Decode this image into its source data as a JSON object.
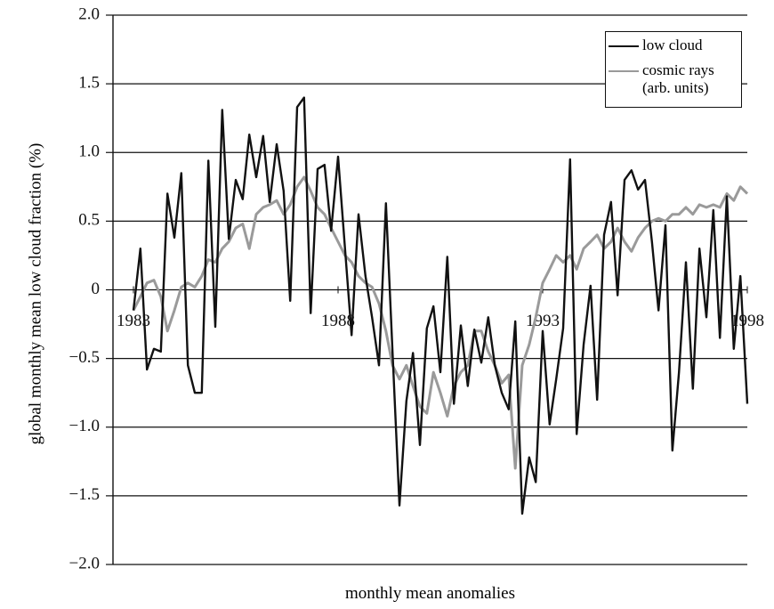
{
  "chart_data": {
    "type": "line",
    "x_label": "monthly mean anomalies",
    "y_label": "global monthly mean low cloud fraction (%)",
    "x": [
      1983,
      1983.17,
      1983.33,
      1983.5,
      1983.67,
      1983.83,
      1984,
      1984.17,
      1984.33,
      1984.5,
      1984.67,
      1984.83,
      1985,
      1985.17,
      1985.33,
      1985.5,
      1985.67,
      1985.83,
      1986,
      1986.17,
      1986.33,
      1986.5,
      1986.67,
      1986.83,
      1987,
      1987.17,
      1987.33,
      1987.5,
      1987.67,
      1987.83,
      1988,
      1988.17,
      1988.33,
      1988.5,
      1988.67,
      1988.83,
      1989,
      1989.17,
      1989.33,
      1989.5,
      1989.67,
      1989.83,
      1990,
      1990.17,
      1990.33,
      1990.5,
      1990.67,
      1990.83,
      1991,
      1991.17,
      1991.33,
      1991.5,
      1991.67,
      1991.83,
      1992,
      1992.17,
      1992.33,
      1992.5,
      1992.67,
      1992.83,
      1993,
      1993.17,
      1993.33,
      1993.5,
      1993.67,
      1993.83,
      1994,
      1994.17,
      1994.33,
      1994.5,
      1994.67,
      1994.83,
      1995,
      1995.17,
      1995.33,
      1995.5,
      1995.67,
      1995.83,
      1996,
      1996.17,
      1996.33,
      1996.5,
      1996.67,
      1996.83,
      1997,
      1997.17,
      1997.33,
      1997.5,
      1997.67,
      1997.83,
      1998
    ],
    "series": [
      {
        "name": "low cloud",
        "color": "#111111",
        "values": [
          -0.15,
          0.3,
          -0.58,
          -0.43,
          -0.45,
          0.7,
          0.38,
          0.85,
          -0.55,
          -0.75,
          -0.75,
          0.94,
          -0.27,
          1.31,
          0.37,
          0.8,
          0.66,
          1.13,
          0.82,
          1.12,
          0.64,
          1.06,
          0.72,
          -0.08,
          1.33,
          1.4,
          -0.17,
          0.88,
          0.91,
          0.43,
          0.97,
          0.3,
          -0.33,
          0.55,
          0.1,
          -0.2,
          -0.55,
          0.63,
          -0.45,
          -1.57,
          -0.81,
          -0.46,
          -1.13,
          -0.28,
          -0.12,
          -0.6,
          0.24,
          -0.83,
          -0.26,
          -0.7,
          -0.29,
          -0.53,
          -0.2,
          -0.55,
          -0.75,
          -0.87,
          -0.23,
          -1.63,
          -1.22,
          -1.4,
          -0.3,
          -0.98,
          -0.65,
          -0.28,
          0.95,
          -1.05,
          -0.4,
          0.03,
          -0.8,
          0.4,
          0.64,
          -0.04,
          0.8,
          0.87,
          0.73,
          0.8,
          0.35,
          -0.15,
          0.47,
          -1.17,
          -0.6,
          0.2,
          -0.72,
          0.3,
          -0.2,
          0.58,
          -0.35,
          0.68,
          -0.43,
          0.1,
          -0.83
        ]
      },
      {
        "name": "cosmic rays (arb. units)",
        "color": "#9a9a9a",
        "values": [
          -0.15,
          -0.05,
          0.05,
          0.07,
          -0.05,
          -0.3,
          -0.15,
          0.02,
          0.05,
          0.02,
          0.1,
          0.22,
          0.2,
          0.3,
          0.35,
          0.45,
          0.48,
          0.3,
          0.55,
          0.6,
          0.62,
          0.65,
          0.55,
          0.62,
          0.75,
          0.82,
          0.72,
          0.6,
          0.55,
          0.45,
          0.35,
          0.25,
          0.2,
          0.1,
          0.05,
          0.02,
          -0.1,
          -0.3,
          -0.55,
          -0.65,
          -0.55,
          -0.7,
          -0.85,
          -0.9,
          -0.6,
          -0.75,
          -0.92,
          -0.7,
          -0.6,
          -0.55,
          -0.3,
          -0.3,
          -0.45,
          -0.55,
          -0.68,
          -0.62,
          -1.3,
          -0.55,
          -0.4,
          -0.2,
          0.05,
          0.15,
          0.25,
          0.2,
          0.25,
          0.15,
          0.3,
          0.35,
          0.4,
          0.3,
          0.35,
          0.45,
          0.35,
          0.28,
          0.38,
          0.45,
          0.5,
          0.52,
          0.5,
          0.55,
          0.55,
          0.6,
          0.55,
          0.62,
          0.6,
          0.62,
          0.6,
          0.7,
          0.65,
          0.75,
          0.7
        ]
      }
    ],
    "xlim": [
      1982.5,
      1998
    ],
    "xticks": [
      1983,
      1988,
      1993,
      1998
    ],
    "ylim": [
      -2,
      2
    ],
    "yticks": [
      {
        "value": -2,
        "label": "−2.0"
      },
      {
        "value": -1.5,
        "label": "−1.5"
      },
      {
        "value": -1,
        "label": "−1.0"
      },
      {
        "value": -0.5,
        "label": "−0.5"
      },
      0,
      0.5,
      {
        "value": 1,
        "label": "1.0"
      },
      1.5,
      {
        "value": 2,
        "label": "2.0"
      }
    ],
    "grid": true,
    "legend": "upper right"
  }
}
